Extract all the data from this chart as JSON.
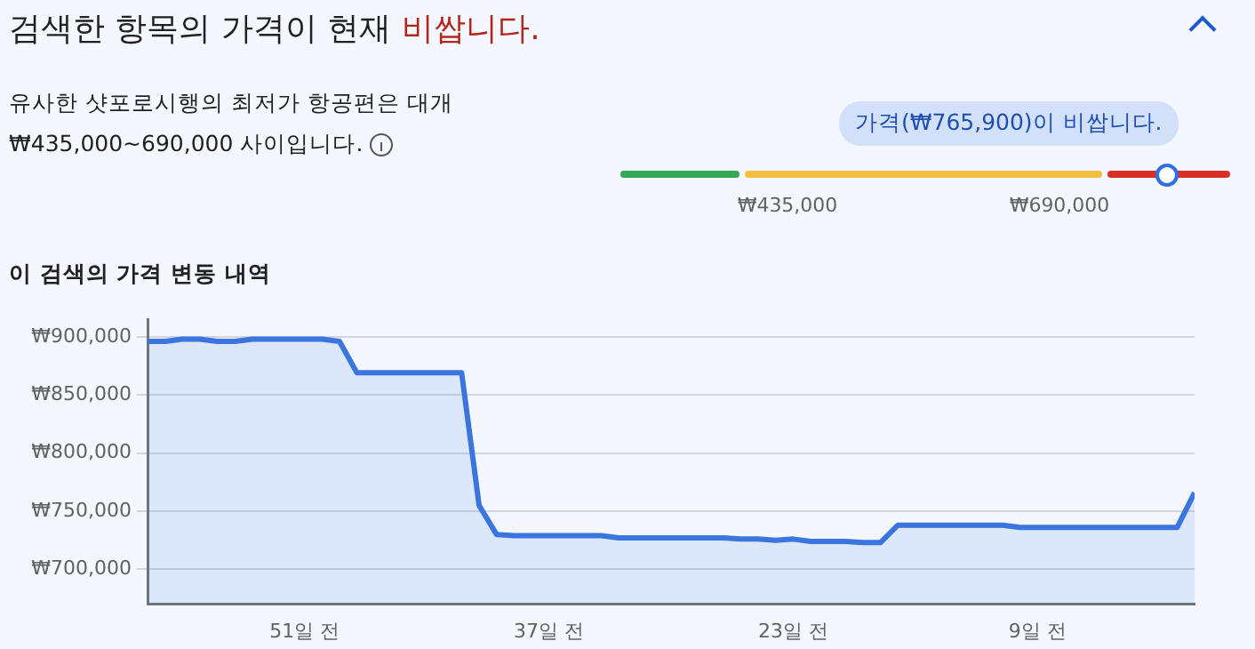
{
  "chart_data": {
    "type": "area",
    "title": "이 검색의 가격 변동 내역",
    "annotations": [
      "검색한 항목의 가격이 현재",
      "비쌉니다.",
      "유사한 샷포로시행의 최저가 항공편은 대개 ₩435,000~690,000 사이입니다.",
      "가격(₩765,900)이 비쌉니다.",
      "₩435,000",
      "₩690,000"
    ],
    "x": [
      -60,
      -59,
      -58,
      -57,
      -56,
      -55,
      -54,
      -53,
      -52,
      -51,
      -50,
      -49,
      -48,
      -47,
      -46,
      -45,
      -44,
      -43,
      -42,
      -41,
      -40,
      -39,
      -38,
      -37,
      -36,
      -35,
      -34,
      -33,
      -32,
      -31,
      -30,
      -29,
      -28,
      -27,
      -26,
      -25,
      -24,
      -23,
      -22,
      -21,
      -20,
      -19,
      -18,
      -17,
      -16,
      -15,
      -14,
      -13,
      -12,
      -11,
      -10,
      -9,
      -8,
      -7,
      -6,
      -5,
      -4,
      -3,
      -2,
      -1,
      0
    ],
    "series": [
      {
        "color": "#3a75e0",
        "values": [
          896000,
          896000,
          898000,
          898000,
          896000,
          896000,
          898000,
          898000,
          898000,
          898000,
          898000,
          896000,
          869000,
          869000,
          869000,
          869000,
          869000,
          869000,
          869000,
          755000,
          730000,
          729000,
          729000,
          729000,
          729000,
          729000,
          729000,
          727000,
          727000,
          727000,
          727000,
          727000,
          727000,
          727000,
          726000,
          726000,
          725000,
          726000,
          724000,
          724000,
          724000,
          723000,
          723000,
          738000,
          738000,
          738000,
          738000,
          738000,
          738000,
          738000,
          736000,
          736000,
          736000,
          736000,
          736000,
          736000,
          736000,
          736000,
          736000,
          736000,
          765900
        ]
      }
    ],
    "xlim": [
      -60,
      0
    ],
    "xticks": [
      {
        "value": -51,
        "label": "51일 전"
      },
      {
        "value": -37,
        "label": "37일 전"
      },
      {
        "value": -23,
        "label": "23일 전"
      },
      {
        "value": -9,
        "label": "9일 전"
      }
    ],
    "ylim": [
      670000,
      915000
    ],
    "yticks": [
      {
        "value": 700000,
        "label": "₩700,000"
      },
      {
        "value": 750000,
        "label": "₩750,000"
      },
      {
        "value": 800000,
        "label": "₩800,000"
      },
      {
        "value": 850000,
        "label": "₩850,000"
      },
      {
        "value": 900000,
        "label": "₩900,000"
      }
    ],
    "grid": "y",
    "legend": false,
    "marker": "none",
    "line_style": "solid"
  }
}
